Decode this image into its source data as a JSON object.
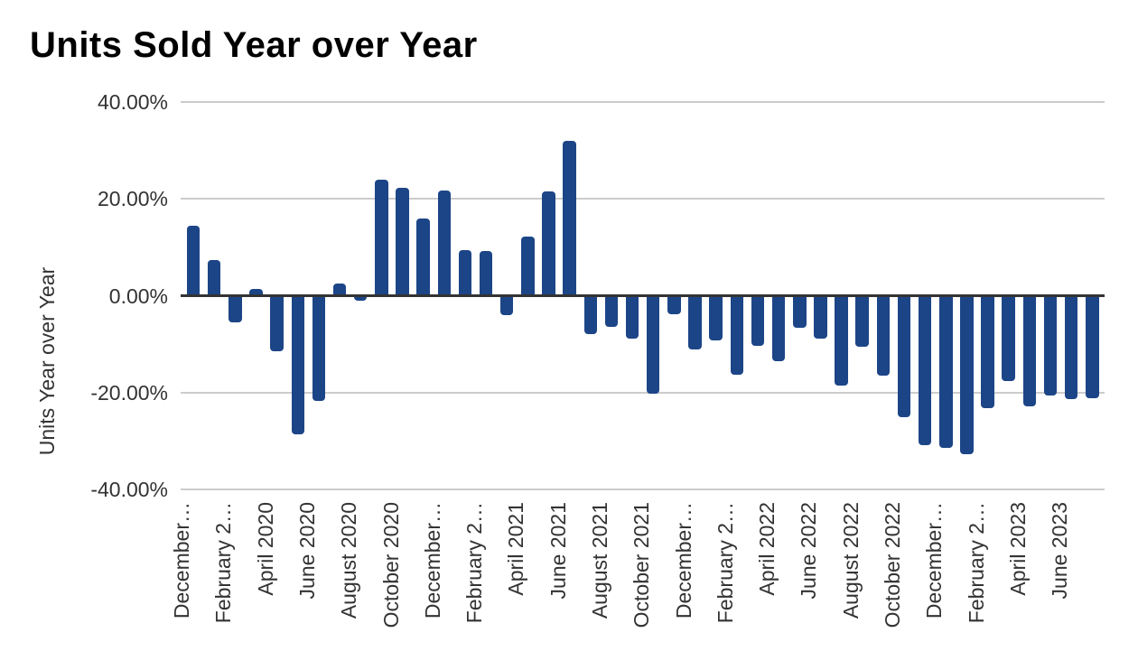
{
  "page": {
    "background_color": "#ffffff"
  },
  "chart_data": {
    "type": "bar",
    "title": "Units Sold Year over Year",
    "ylabel": "Units Year over Year",
    "xlabel": "",
    "legend_position": "none",
    "grid": true,
    "bar_color": "#1c4587",
    "grid_color": "#cccccc",
    "zero_axis_color": "#333333",
    "text_color": "#333333",
    "title_color": "#000000",
    "ylim": [
      -40,
      40
    ],
    "ytick_step_pct": 20,
    "yticks": [
      {
        "label": "40.00%",
        "value": 40
      },
      {
        "label": "20.00%",
        "value": 20
      },
      {
        "label": "0.00%",
        "value": 0
      },
      {
        "label": "-20.00%",
        "value": -20
      },
      {
        "label": "-40.00%",
        "value": -40
      }
    ],
    "x_tick_every": 2,
    "x_tick_labels": [
      "December…",
      "February 2…",
      "April 2020",
      "June 2020",
      "August 2020",
      "October 2020",
      "December…",
      "February 2…",
      "April 2021",
      "June 2021",
      "August 2021",
      "October 2021",
      "December…",
      "February 2…",
      "April 2022",
      "June 2022",
      "August 2022",
      "October 2022",
      "December…",
      "February 2…",
      "April 2023",
      "June 2023"
    ],
    "categories": [
      "December 2019",
      "January 2020",
      "February 2020",
      "March 2020",
      "April 2020",
      "May 2020",
      "June 2020",
      "July 2020",
      "August 2020",
      "September 2020",
      "October 2020",
      "November 2020",
      "December 2020",
      "January 2021",
      "February 2021",
      "March 2021",
      "April 2021",
      "May 2021",
      "June 2021",
      "July 2021",
      "August 2021",
      "September 2021",
      "October 2021",
      "November 2021",
      "December 2021",
      "January 2022",
      "February 2022",
      "March 2022",
      "April 2022",
      "May 2022",
      "June 2022",
      "July 2022",
      "August 2022",
      "September 2022",
      "October 2022",
      "November 2022",
      "December 2022",
      "January 2023",
      "February 2023",
      "March 2023",
      "April 2023",
      "May 2023",
      "June 2023",
      "July 2023"
    ],
    "values_pct": [
      14.4,
      7.3,
      -5.2,
      1.4,
      -11.1,
      -28.4,
      -21.5,
      2.5,
      -0.8,
      24.0,
      22.2,
      15.9,
      21.8,
      9.5,
      9.2,
      -3.7,
      12.2,
      21.5,
      31.9,
      -7.6,
      -6.2,
      -8.6,
      -19.9,
      -3.5,
      -10.8,
      -9.0,
      -16.0,
      -10.1,
      -13.3,
      -6.3,
      -8.6,
      -18.3,
      -10.2,
      -16.3,
      -24.8,
      -30.6,
      -31.2,
      -32.5,
      -22.9,
      -17.4,
      -22.5,
      -20.4,
      -21.1,
      -20.8
    ]
  }
}
